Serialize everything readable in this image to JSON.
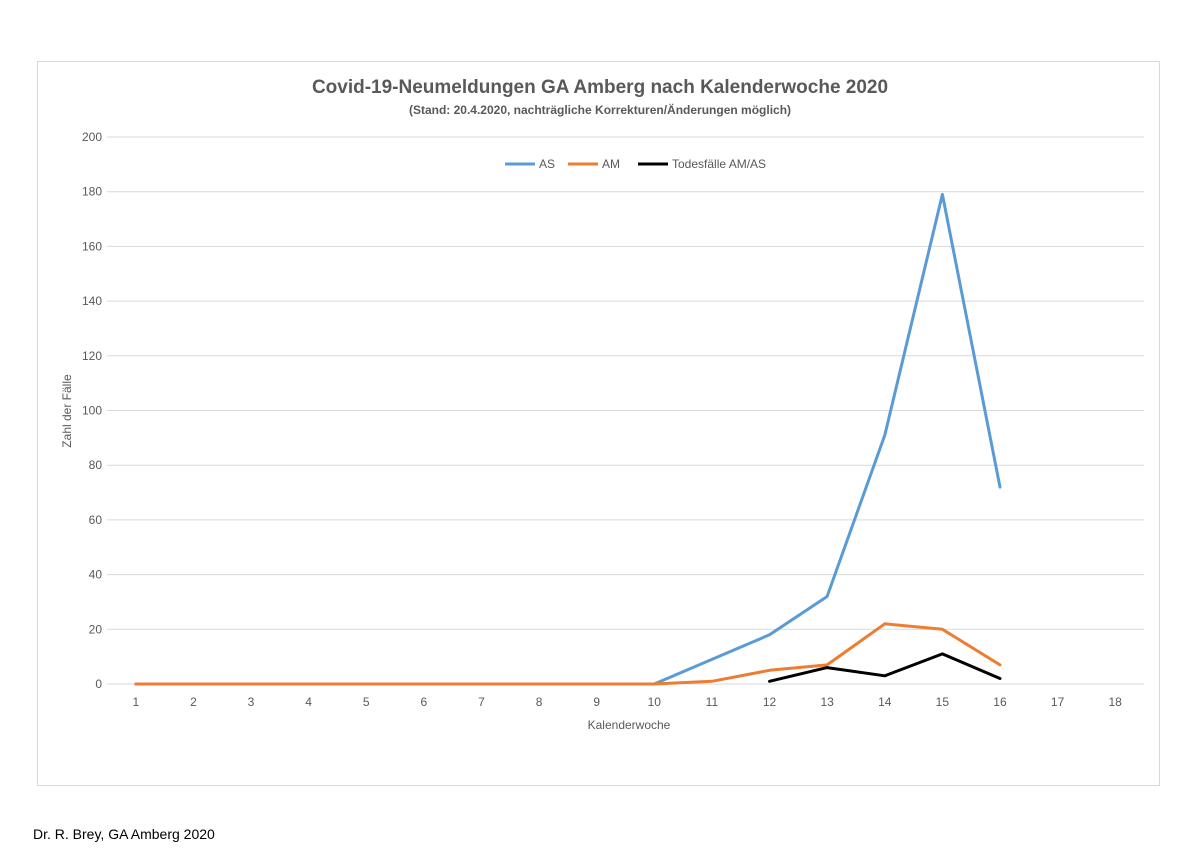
{
  "footer": {
    "credit": "Dr. R. Brey, GA Amberg 2020"
  },
  "chart_data": {
    "type": "line",
    "title": "Covid-19-Neumeldungen GA Amberg nach Kalenderwoche 2020",
    "subtitle": "(Stand: 20.4.2020,  nachträgliche Korrekturen/Änderungen möglich)",
    "xlabel": "Kalenderwoche",
    "ylabel": "Zahl der Fälle",
    "categories": [
      "1",
      "2",
      "3",
      "4",
      "5",
      "6",
      "7",
      "8",
      "9",
      "10",
      "11",
      "12",
      "13",
      "14",
      "15",
      "16",
      "17",
      "18"
    ],
    "ylim": [
      0,
      200
    ],
    "yticks": [
      0,
      20,
      40,
      60,
      80,
      100,
      120,
      140,
      160,
      180,
      200
    ],
    "grid": true,
    "legend_position": "top",
    "series": [
      {
        "name": "AS",
        "color": "#5b9bd5",
        "values": [
          0,
          0,
          0,
          0,
          0,
          0,
          0,
          0,
          0,
          0,
          9,
          18,
          32,
          91,
          179,
          72,
          null,
          null
        ]
      },
      {
        "name": "AM",
        "color": "#ed7d31",
        "values": [
          0,
          0,
          0,
          0,
          0,
          0,
          0,
          0,
          0,
          0,
          1,
          5,
          7,
          22,
          20,
          7,
          null,
          null
        ]
      },
      {
        "name": "Todesfälle AM/AS",
        "color": "#000000",
        "values": [
          null,
          null,
          null,
          null,
          null,
          null,
          null,
          null,
          null,
          null,
          null,
          1,
          6,
          3,
          11,
          2,
          null,
          null
        ]
      }
    ]
  }
}
